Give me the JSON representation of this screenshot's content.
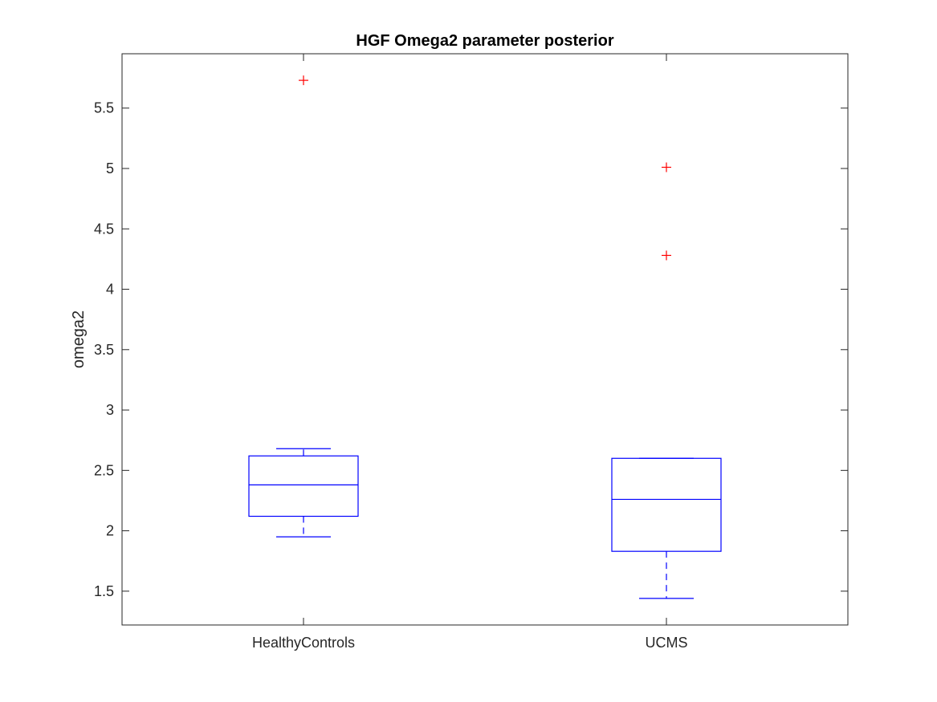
{
  "chart_data": {
    "type": "box",
    "title": "HGF Omega2 parameter posterior",
    "xlabel": "",
    "ylabel": "omega2",
    "categories": [
      "HealthyControls",
      "UCMS"
    ],
    "ylim": [
      1.22,
      5.95
    ],
    "yticks": [
      "1.5",
      "2",
      "2.5",
      "3",
      "3.5",
      "4",
      "4.5",
      "5",
      "5.5"
    ],
    "boxes": [
      {
        "category": "HealthyControls",
        "whisker_low": 1.95,
        "q1": 2.12,
        "median": 2.38,
        "q3": 2.62,
        "whisker_high": 2.68,
        "outliers": [
          5.73
        ]
      },
      {
        "category": "UCMS",
        "whisker_low": 1.44,
        "q1": 1.83,
        "median": 2.26,
        "q3": 2.6,
        "whisker_high": 2.6,
        "outliers": [
          5.01,
          4.28
        ]
      }
    ],
    "colors": {
      "box": "#0000ff",
      "outlier": "#ff0000",
      "axis": "#262626"
    },
    "grid": false,
    "legend": "none"
  }
}
